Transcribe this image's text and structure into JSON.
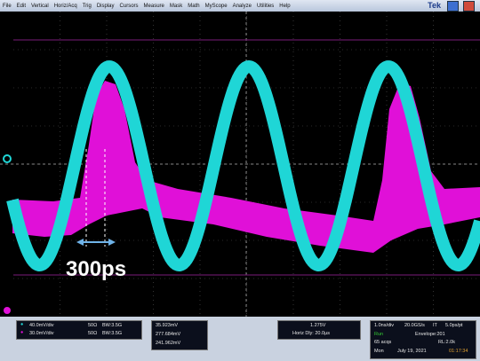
{
  "menu": {
    "items": [
      "File",
      "Edit",
      "Vertical",
      "Horiz/Acq",
      "Trig",
      "Display",
      "Cursors",
      "Measure",
      "Mask",
      "Math",
      "MyScope",
      "Analyze",
      "Utilities",
      "Help"
    ],
    "brand": "Tek"
  },
  "annotation": "300ps",
  "channels": [
    {
      "scale": "40.0mV/div",
      "impedance": "50Ω",
      "bandwidth": "BW:3.5G"
    },
    {
      "scale": "30.0mV/div",
      "impedance": "50Ω",
      "bandwidth": "BW:3.5G"
    }
  ],
  "measurements": [
    "35.923mV",
    "277.684mV",
    "241.962mV"
  ],
  "trigger": {
    "level": "1.275V",
    "horiz_delay": "Horiz Dly: 20.0µs"
  },
  "acquisition": {
    "timebase": "1.0ns/div",
    "sample_rate": "20.0GS/s",
    "mode": "IT",
    "resolution": "5.0ps/pt",
    "state": "Run",
    "envelope": "Envelope:201",
    "acqs": "65 acqs",
    "record_length": "RL:2.0k",
    "day": "Mon",
    "date": "July 19, 2021",
    "time": "01:17:34"
  }
}
